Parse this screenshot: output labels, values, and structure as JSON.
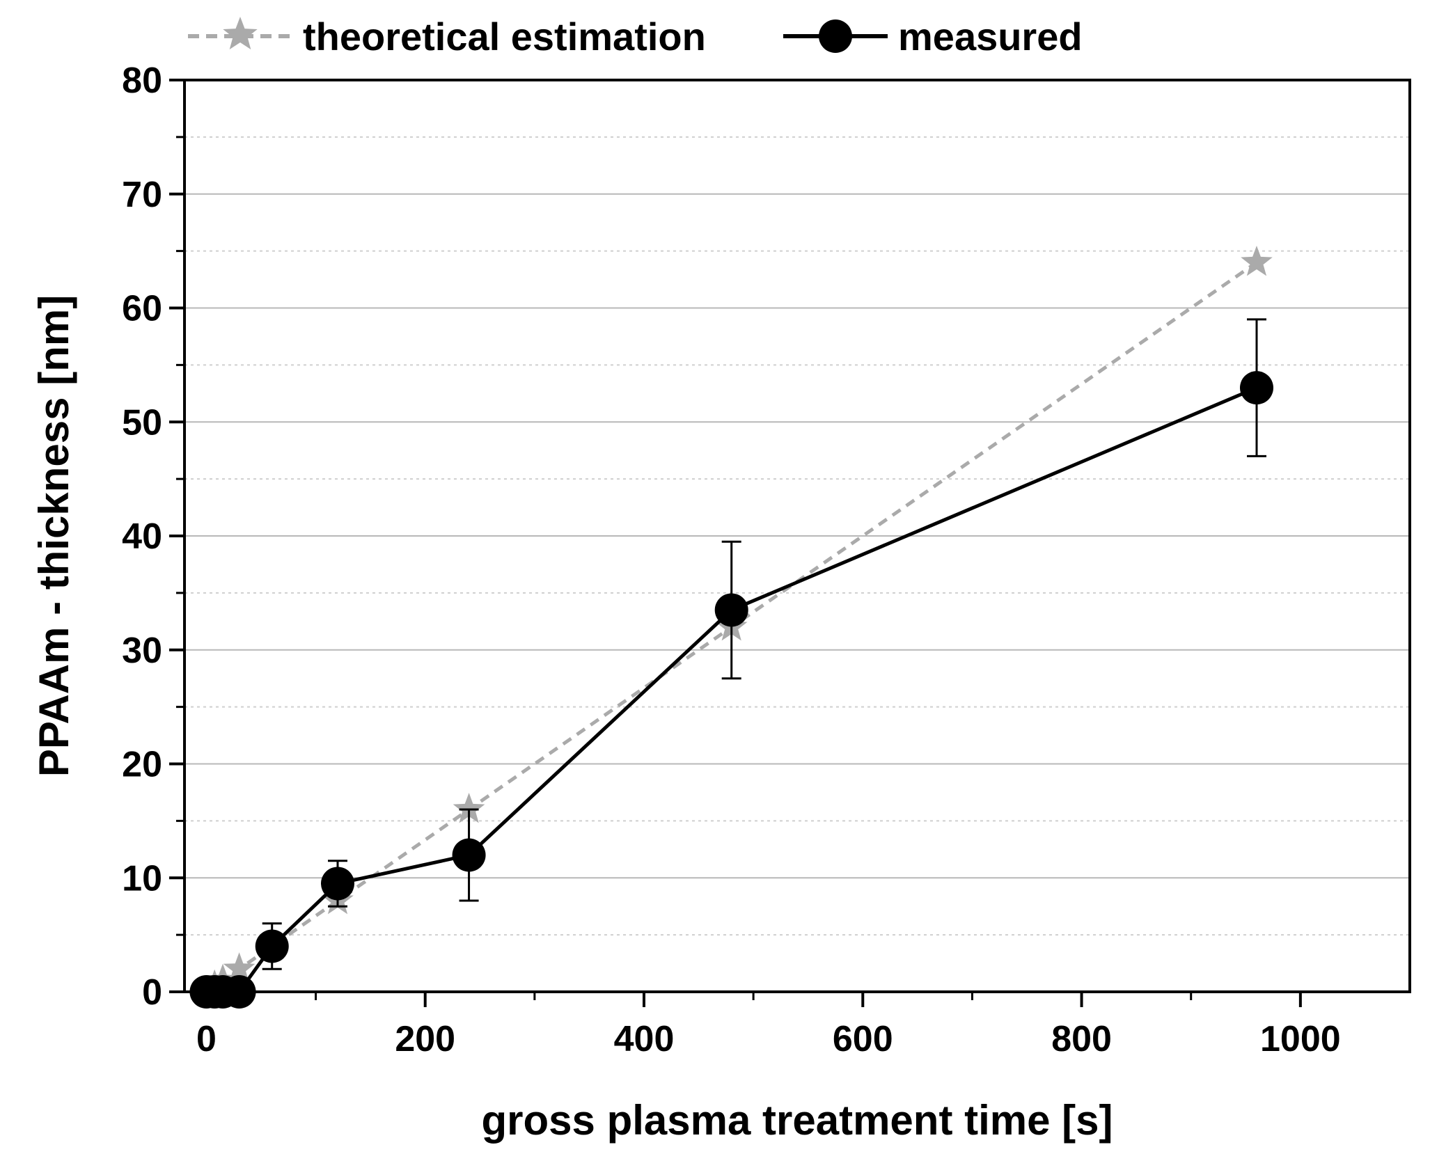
{
  "chart_data": {
    "type": "line",
    "title": "",
    "xlabel": "gross plasma treatment time [s]",
    "ylabel": "PPAAm - thickness [nm]",
    "xlim": [
      -20,
      1100
    ],
    "ylim": [
      0,
      80
    ],
    "xticks": [
      0,
      200,
      400,
      600,
      800,
      1000
    ],
    "yticks": [
      0,
      10,
      20,
      30,
      40,
      50,
      60,
      70,
      80
    ],
    "grid": true,
    "legend_position": "top",
    "series": [
      {
        "name": "theoretical estimation",
        "style": "dashed",
        "marker": "star",
        "color": "#aaaaaa",
        "x": [
          0,
          7.5,
          15,
          30,
          60,
          120,
          240,
          480,
          960
        ],
        "y": [
          0,
          0.5,
          1,
          2,
          4,
          8,
          16,
          32,
          64
        ]
      },
      {
        "name": "measured",
        "style": "solid",
        "marker": "circle",
        "color": "#000000",
        "x": [
          0,
          7.5,
          15,
          30,
          60,
          120,
          240,
          480,
          960
        ],
        "y": [
          0,
          0,
          0,
          0,
          4,
          9.5,
          12,
          33.5,
          53
        ],
        "yerr": [
          0,
          0,
          0,
          0,
          2,
          2,
          4,
          6,
          6
        ]
      }
    ]
  }
}
